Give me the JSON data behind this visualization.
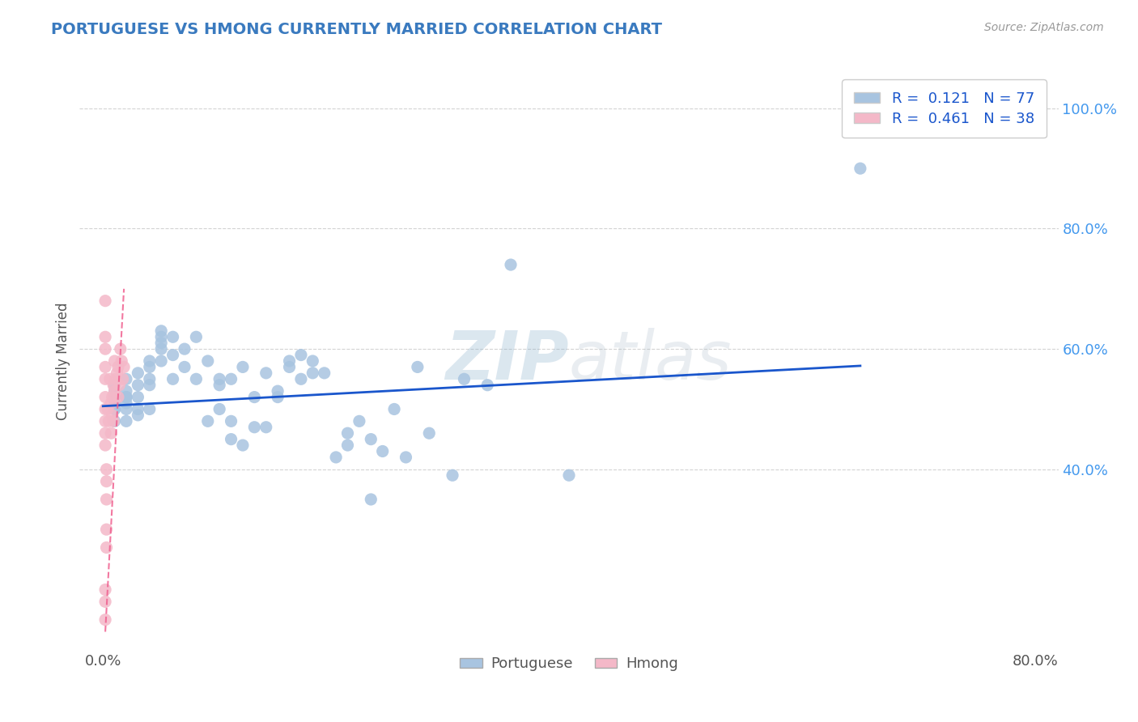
{
  "title": "PORTUGUESE VS HMONG CURRENTLY MARRIED CORRELATION CHART",
  "source": "Source: ZipAtlas.com",
  "ylabel": "Currently Married",
  "watermark": "ZIPatlas",
  "portuguese_R": "0.121",
  "portuguese_N": 77,
  "hmong_R": "0.461",
  "hmong_N": 38,
  "portuguese_color": "#a8c4e0",
  "hmong_color": "#f4b8c8",
  "trend_line_color": "#1a56cc",
  "hmong_trend_color": "#f06090",
  "title_color": "#3a7abf",
  "legend_R_color": "#1a56cc",
  "portuguese_scatter": [
    [
      0.01,
      0.52
    ],
    [
      0.01,
      0.53
    ],
    [
      0.01,
      0.5
    ],
    [
      0.01,
      0.52
    ],
    [
      0.01,
      0.48
    ],
    [
      0.01,
      0.51
    ],
    [
      0.01,
      0.54
    ],
    [
      0.01,
      0.5
    ],
    [
      0.02,
      0.52
    ],
    [
      0.02,
      0.51
    ],
    [
      0.02,
      0.55
    ],
    [
      0.02,
      0.5
    ],
    [
      0.02,
      0.48
    ],
    [
      0.02,
      0.52
    ],
    [
      0.02,
      0.53
    ],
    [
      0.03,
      0.5
    ],
    [
      0.03,
      0.52
    ],
    [
      0.03,
      0.56
    ],
    [
      0.03,
      0.49
    ],
    [
      0.03,
      0.54
    ],
    [
      0.04,
      0.58
    ],
    [
      0.04,
      0.55
    ],
    [
      0.04,
      0.5
    ],
    [
      0.04,
      0.57
    ],
    [
      0.04,
      0.54
    ],
    [
      0.05,
      0.63
    ],
    [
      0.05,
      0.6
    ],
    [
      0.05,
      0.58
    ],
    [
      0.05,
      0.62
    ],
    [
      0.05,
      0.61
    ],
    [
      0.06,
      0.59
    ],
    [
      0.06,
      0.55
    ],
    [
      0.06,
      0.62
    ],
    [
      0.07,
      0.57
    ],
    [
      0.07,
      0.6
    ],
    [
      0.08,
      0.55
    ],
    [
      0.08,
      0.62
    ],
    [
      0.09,
      0.58
    ],
    [
      0.09,
      0.48
    ],
    [
      0.1,
      0.54
    ],
    [
      0.1,
      0.55
    ],
    [
      0.1,
      0.5
    ],
    [
      0.11,
      0.48
    ],
    [
      0.11,
      0.45
    ],
    [
      0.11,
      0.55
    ],
    [
      0.12,
      0.44
    ],
    [
      0.12,
      0.57
    ],
    [
      0.13,
      0.52
    ],
    [
      0.13,
      0.47
    ],
    [
      0.14,
      0.56
    ],
    [
      0.14,
      0.47
    ],
    [
      0.15,
      0.52
    ],
    [
      0.15,
      0.53
    ],
    [
      0.16,
      0.58
    ],
    [
      0.16,
      0.57
    ],
    [
      0.17,
      0.55
    ],
    [
      0.17,
      0.59
    ],
    [
      0.18,
      0.56
    ],
    [
      0.18,
      0.58
    ],
    [
      0.19,
      0.56
    ],
    [
      0.2,
      0.42
    ],
    [
      0.21,
      0.46
    ],
    [
      0.21,
      0.44
    ],
    [
      0.22,
      0.48
    ],
    [
      0.23,
      0.35
    ],
    [
      0.23,
      0.45
    ],
    [
      0.24,
      0.43
    ],
    [
      0.25,
      0.5
    ],
    [
      0.26,
      0.42
    ],
    [
      0.27,
      0.57
    ],
    [
      0.28,
      0.46
    ],
    [
      0.3,
      0.39
    ],
    [
      0.31,
      0.55
    ],
    [
      0.33,
      0.54
    ],
    [
      0.35,
      0.74
    ],
    [
      0.4,
      0.39
    ],
    [
      0.65,
      0.9
    ]
  ],
  "hmong_scatter": [
    [
      0.002,
      0.68
    ],
    [
      0.002,
      0.62
    ],
    [
      0.002,
      0.6
    ],
    [
      0.002,
      0.57
    ],
    [
      0.002,
      0.55
    ],
    [
      0.002,
      0.52
    ],
    [
      0.002,
      0.5
    ],
    [
      0.002,
      0.48
    ],
    [
      0.002,
      0.46
    ],
    [
      0.002,
      0.44
    ],
    [
      0.003,
      0.4
    ],
    [
      0.003,
      0.38
    ],
    [
      0.003,
      0.35
    ],
    [
      0.003,
      0.3
    ],
    [
      0.003,
      0.27
    ],
    [
      0.004,
      0.5
    ],
    [
      0.005,
      0.48
    ],
    [
      0.006,
      0.55
    ],
    [
      0.007,
      0.51
    ],
    [
      0.007,
      0.46
    ],
    [
      0.008,
      0.52
    ],
    [
      0.008,
      0.49
    ],
    [
      0.009,
      0.54
    ],
    [
      0.009,
      0.48
    ],
    [
      0.01,
      0.53
    ],
    [
      0.01,
      0.58
    ],
    [
      0.011,
      0.55
    ],
    [
      0.012,
      0.56
    ],
    [
      0.013,
      0.52
    ],
    [
      0.013,
      0.57
    ],
    [
      0.014,
      0.54
    ],
    [
      0.015,
      0.6
    ],
    [
      0.016,
      0.58
    ],
    [
      0.017,
      0.55
    ],
    [
      0.018,
      0.57
    ],
    [
      0.002,
      0.2
    ],
    [
      0.002,
      0.18
    ],
    [
      0.002,
      0.15
    ]
  ],
  "portuguese_trend_x": [
    0.0,
    0.65
  ],
  "portuguese_trend_y": [
    0.505,
    0.572
  ],
  "hmong_trend_x": [
    0.002,
    0.018
  ],
  "hmong_trend_y": [
    0.13,
    0.7
  ],
  "xlim": [
    -0.02,
    0.82
  ],
  "ylim": [
    0.1,
    1.06
  ],
  "xticks": [
    0.0,
    0.8
  ],
  "xtick_labels": [
    "0.0%",
    "80.0%"
  ],
  "yticks": [
    0.4,
    0.6,
    0.8,
    1.0
  ],
  "ytick_labels": [
    "40.0%",
    "60.0%",
    "80.0%",
    "100.0%"
  ],
  "grid_color": "#c8c8c8",
  "background_color": "#ffffff",
  "fig_background": "#ffffff"
}
